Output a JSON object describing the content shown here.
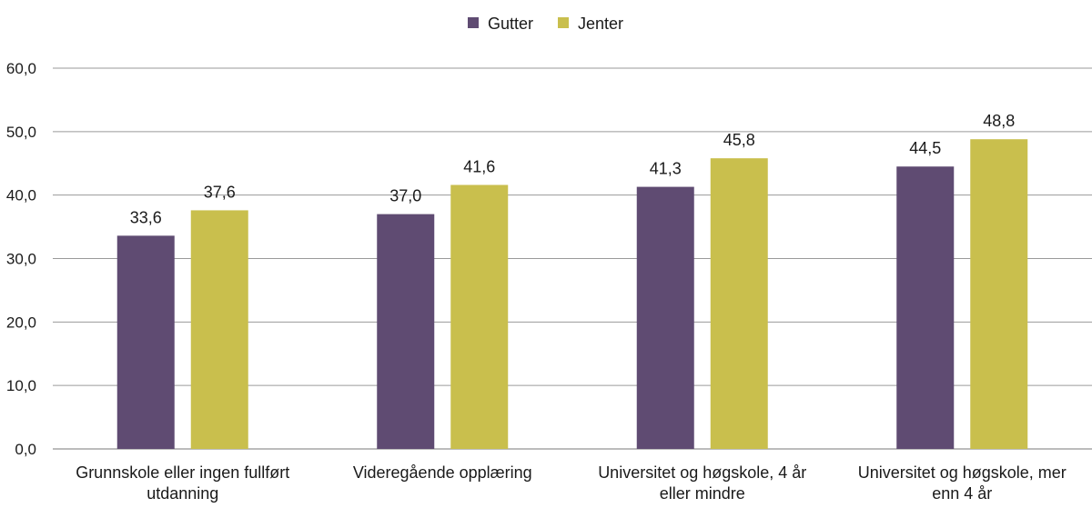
{
  "chart_data": {
    "type": "bar",
    "categories": [
      [
        "Grunnskole eller ingen fullført",
        "utdanning"
      ],
      [
        "Videregående opplæring"
      ],
      [
        "Universitet og høgskole, 4 år",
        "eller mindre"
      ],
      [
        "Universitet og høgskole, mer",
        "enn 4 år"
      ]
    ],
    "series": [
      {
        "name": "Gutter",
        "color": "#5f4b72",
        "values": [
          33.6,
          37.0,
          41.3,
          44.5
        ],
        "labels": [
          "33,6",
          "37,0",
          "41,3",
          "44,5"
        ]
      },
      {
        "name": "Jenter",
        "color": "#c9bf4d",
        "values": [
          37.6,
          41.6,
          45.8,
          48.8
        ],
        "labels": [
          "37,6",
          "41,6",
          "45,8",
          "48,8"
        ]
      }
    ],
    "yticks": [
      "0,0",
      "10,0",
      "20,0",
      "30,0",
      "40,0",
      "50,0",
      "60,0"
    ],
    "ylim": [
      0,
      60
    ],
    "grid": true,
    "legend_position": "top-center",
    "title": "",
    "xlabel": "",
    "ylabel": ""
  }
}
